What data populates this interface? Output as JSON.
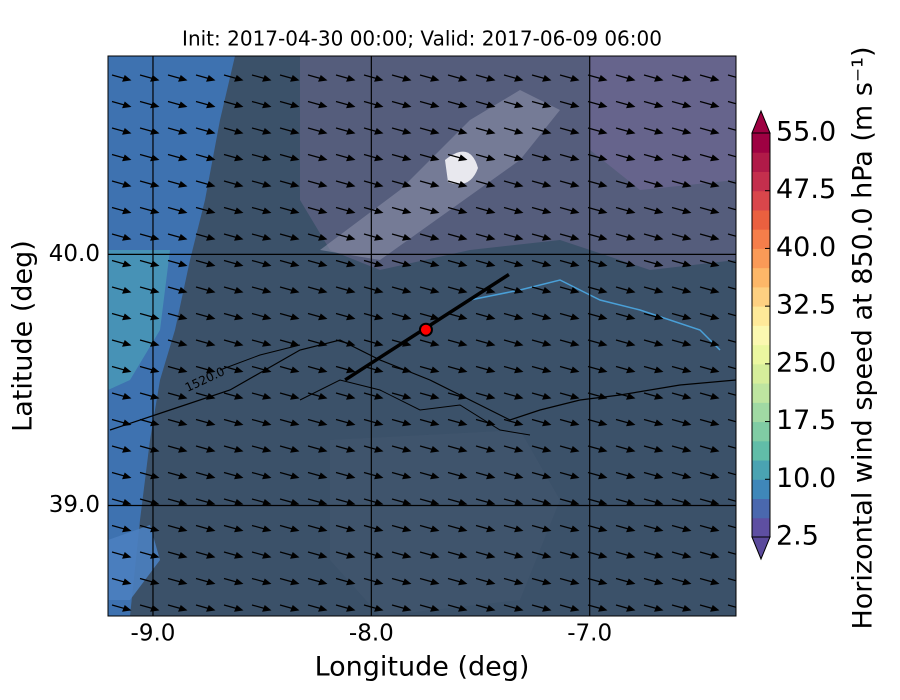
{
  "chart_data": {
    "type": "map",
    "title": "Init: 2017-04-30 00:00; Valid: 2017-06-09 06:00",
    "xlabel": "Longitude (deg)",
    "ylabel": "Latitude (deg)",
    "xlim": [
      -9.206,
      -6.33
    ],
    "ylim": [
      38.56,
      40.79
    ],
    "xticks": [
      {
        "value": -9,
        "label": "-9.0"
      },
      {
        "value": -8,
        "label": "-8.0"
      },
      {
        "value": -7,
        "label": "-7.0"
      }
    ],
    "yticks": [
      {
        "value": 39,
        "label": "39.0"
      },
      {
        "value": 40,
        "label": "40.0"
      }
    ],
    "grid": true,
    "contour_label": "1520.0",
    "cross_section": {
      "lon": [
        -8.12,
        -7.37
      ],
      "lat": [
        39.5,
        39.92
      ],
      "point_lon": -7.75,
      "point_lat": 39.7,
      "color": "#000000",
      "point_color": "#ff0000"
    },
    "colorbar": {
      "label": "Horizontal wind speed at 850.0 hPa (m s⁻¹)",
      "lim": [
        2.5,
        55
      ],
      "ticks": [
        2.5,
        {
          "value": 10,
          "label": "10.0"
        },
        17.5,
        {
          "value": 25,
          "label": "25.0"
        },
        32.5,
        {
          "value": 40,
          "label": "40.0"
        },
        47.5,
        {
          "value": 55,
          "label": "55.0"
        }
      ],
      "colors": [
        "#5e4fa2",
        "#4a68ae",
        "#3f87b9",
        "#4aa3b2",
        "#61bda8",
        "#80cca4",
        "#a0d9a3",
        "#bee5a0",
        "#d6ee9b",
        "#ebf7a0",
        "#fbf8b0",
        "#fee999",
        "#fed081",
        "#fdb768",
        "#fa9a57",
        "#f57e4a",
        "#ea603f",
        "#d9464b",
        "#c42f4d",
        "#b01a48",
        "#9e0142"
      ],
      "under_color": "#5b4a9c",
      "over_color": "#9e0142"
    }
  }
}
